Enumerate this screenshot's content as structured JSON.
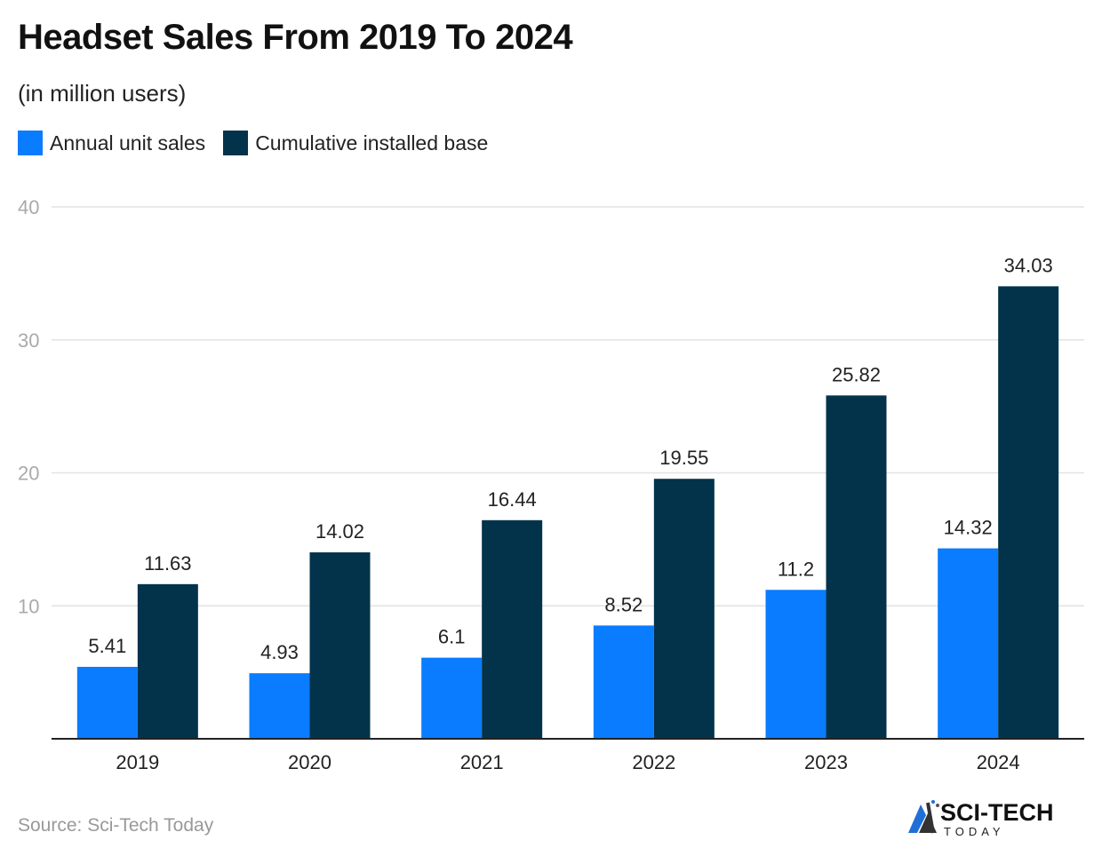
{
  "chart_data": {
    "type": "bar",
    "title": "Headset Sales From 2019 To 2024",
    "subtitle": "(in million users)",
    "categories": [
      "2019",
      "2020",
      "2021",
      "2022",
      "2023",
      "2024"
    ],
    "series": [
      {
        "name": "Annual unit sales",
        "color": "#0a7cff",
        "values": [
          5.41,
          4.93,
          6.1,
          8.52,
          11.2,
          14.32
        ]
      },
      {
        "name": "Cumulative installed base",
        "color": "#02334b",
        "values": [
          11.63,
          14.02,
          16.44,
          19.55,
          25.82,
          34.03
        ]
      }
    ],
    "ylim": [
      0,
      40
    ],
    "yticks": [
      10,
      20,
      30,
      40
    ],
    "grid": true,
    "legend": "top-left",
    "source": "Source: Sci-Tech Today"
  },
  "logo": {
    "text": "SCI-TECH",
    "subtext": "TODAY"
  }
}
